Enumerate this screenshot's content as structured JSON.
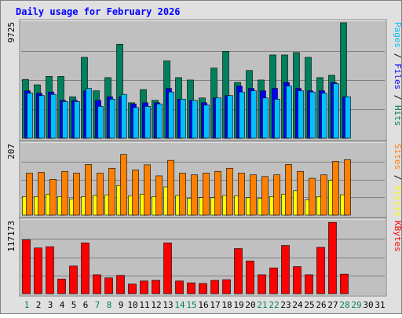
{
  "chart_data": {
    "type": "bar",
    "title": "Daily usage for February 2026",
    "days": [
      "1",
      "2",
      "3",
      "4",
      "5",
      "6",
      "7",
      "8",
      "9",
      "10",
      "11",
      "12",
      "13",
      "14",
      "15",
      "16",
      "17",
      "18",
      "19",
      "20",
      "21",
      "22",
      "23",
      "24",
      "25",
      "26",
      "27",
      "28",
      "29",
      "30",
      "31"
    ],
    "weekend_days": [
      "1",
      "7",
      "8",
      "14",
      "15",
      "21",
      "22",
      "28",
      "29"
    ],
    "colors": {
      "hits": "#00805c",
      "files": "#0000ff",
      "pages": "#00c0ff",
      "visits": "#ffff00",
      "sites": "#ff8000",
      "kbytes": "#ff0000",
      "panel_bg": "#c0c0c0",
      "page_bg": "#e0e0e0",
      "title": "#0000ff",
      "day_weekday": "#000000",
      "day_weekend": "#00805c"
    },
    "panels": [
      {
        "id": "hits",
        "ymax_label": "9725",
        "ymax": 9725,
        "legend": [
          {
            "text": "Pages",
            "color": "#00c0ff"
          },
          {
            "text": " / ",
            "color": "#000000"
          },
          {
            "text": "Files",
            "color": "#0000ff"
          },
          {
            "text": " / ",
            "color": "#000000"
          },
          {
            "text": "Hits",
            "color": "#00805c"
          }
        ],
        "series": [
          {
            "name": "Hits",
            "color": "#00805c",
            "values": [
              4950,
              4500,
              5200,
              5200,
              3500,
              6800,
              4000,
              5100,
              7900,
              3000,
              4100,
              3200,
              6500,
              5100,
              4900,
              3400,
              5900,
              7300,
              4700,
              5700,
              4900,
              7000,
              7000,
              7200,
              6800,
              5100,
              5300,
              9700
            ]
          },
          {
            "name": "Files",
            "color": "#0000ff",
            "values": [
              4000,
              3800,
              3900,
              3200,
              3200,
              4000,
              3200,
              3500,
              3500,
              2900,
              3000,
              3000,
              4200,
              3300,
              3200,
              3000,
              3400,
              3600,
              4400,
              4200,
              4000,
              4200,
              4700,
              4200,
              4000,
              4000,
              4700,
              3500
            ]
          },
          {
            "name": "Pages",
            "color": "#00c0ff",
            "values": [
              3800,
              3600,
              3700,
              3100,
              3100,
              4200,
              2700,
              3300,
              3700,
              2600,
              2700,
              2900,
              3900,
              3300,
              3200,
              2800,
              3400,
              3600,
              3900,
              4000,
              3400,
              3300,
              4400,
              4000,
              3900,
              3800,
              4600,
              3500
            ]
          }
        ]
      },
      {
        "id": "visits",
        "ymax_label": "207",
        "ymax": 207,
        "legend": [
          {
            "text": "Sites",
            "color": "#ff8000"
          },
          {
            "text": " / ",
            "color": "#000000"
          },
          {
            "text": "Visits",
            "color": "#ffff00"
          }
        ],
        "series": [
          {
            "name": "Visits",
            "color": "#ffff00",
            "values": [
              55,
              55,
              62,
              55,
              48,
              55,
              58,
              60,
              87,
              57,
              62,
              55,
              83,
              58,
              50,
              52,
              52,
              58,
              57,
              52,
              50,
              55,
              62,
              72,
              45,
              55,
              102,
              60
            ]
          },
          {
            "name": "Sites",
            "color": "#ff8000",
            "values": [
              123,
              125,
              105,
              128,
              123,
              148,
              123,
              137,
              177,
              132,
              147,
              115,
              160,
              123,
              118,
              123,
              128,
              137,
              123,
              118,
              113,
              118,
              148,
              128,
              108,
              118,
              157,
              162
            ]
          }
        ]
      },
      {
        "id": "kbytes",
        "ymax_label": "117173",
        "ymax": 117173,
        "legend": [
          {
            "text": "KBytes",
            "color": "#ff0000"
          }
        ],
        "series": [
          {
            "name": "KBytes",
            "color": "#ff0000",
            "values": [
              87000,
              74000,
              76000,
              24000,
              45000,
              82000,
              31000,
              26000,
              30000,
              16000,
              21000,
              22000,
              82000,
              21000,
              18000,
              17000,
              22000,
              23000,
              73000,
              53000,
              31000,
              42000,
              78000,
              44000,
              31000,
              75000,
              115000,
              32000
            ]
          }
        ]
      }
    ]
  }
}
